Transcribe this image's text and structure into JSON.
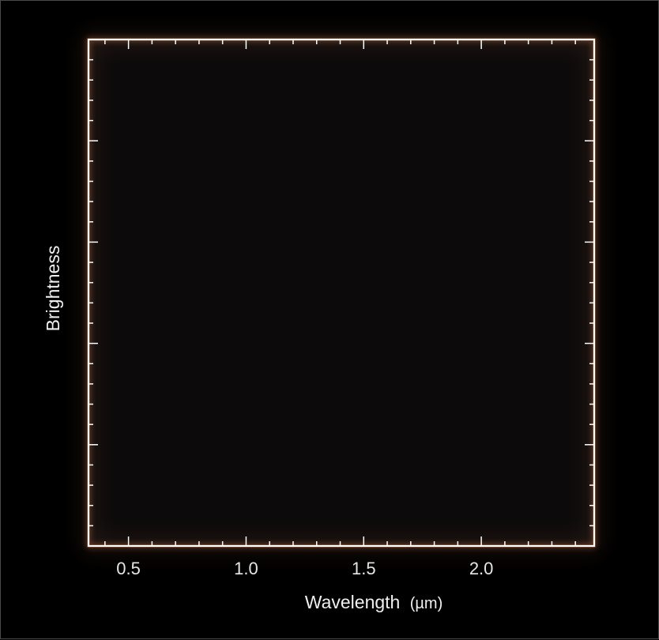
{
  "chart_data": {
    "type": "line",
    "title": "",
    "xlabel": "Wavelength",
    "xunit": "(µm)",
    "ylabel": "Brightness",
    "xlim": [
      0.33,
      2.48
    ],
    "x_major_ticks": [
      0.5,
      1.0,
      1.5,
      2.0
    ],
    "x_tick_labels": [
      "0.5",
      "1.0",
      "1.5",
      "2.0"
    ],
    "x_minor_step": 0.1,
    "y_major_count": 5,
    "y_minor_per_major": 5,
    "series": [],
    "grid": false,
    "colors": {
      "background": "#000000",
      "plot_background": "#0c0a0a",
      "axes_frame": "#ffffff",
      "axes_glow": "#ff9a6a",
      "text": "#e6e6e6"
    }
  }
}
